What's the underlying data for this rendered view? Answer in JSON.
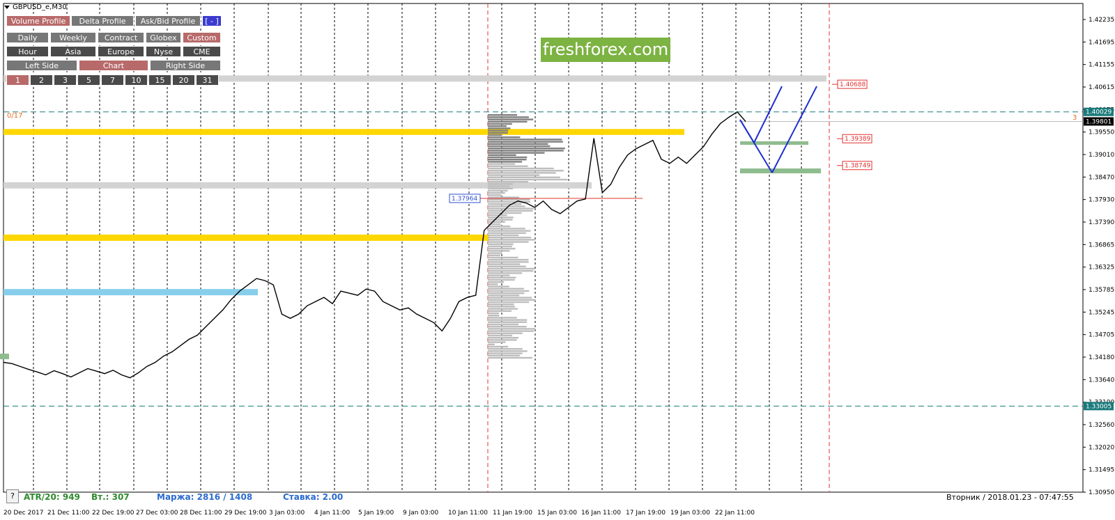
{
  "window": {
    "symbol": "GBPUSD_e,M30"
  },
  "toolbar": {
    "row1": [
      {
        "label": "Volume Profile",
        "active": true
      },
      {
        "label": "Delta Profile",
        "active": false
      },
      {
        "label": "Ask/Bid Profile",
        "active": false
      },
      {
        "label": "[ - ]",
        "active": false,
        "blue": true
      }
    ],
    "row2": [
      {
        "label": "Daily",
        "active": false
      },
      {
        "label": "Weekly",
        "active": false
      },
      {
        "label": "Contract",
        "active": false
      },
      {
        "label": "Globex",
        "active": false
      },
      {
        "label": "Custom",
        "active": true
      }
    ],
    "row3": [
      {
        "label": "Hour",
        "active": false
      },
      {
        "label": "Asia",
        "active": false
      },
      {
        "label": "Europe",
        "active": false
      },
      {
        "label": "Nyse",
        "active": false
      },
      {
        "label": "CME",
        "active": false
      }
    ],
    "row4": [
      {
        "label": "Left Side",
        "active": false
      },
      {
        "label": "Chart",
        "active": true
      },
      {
        "label": "Right Side",
        "active": false
      }
    ],
    "row5": [
      {
        "label": "1",
        "active": true
      },
      {
        "label": "2",
        "active": false
      },
      {
        "label": "3",
        "active": false
      },
      {
        "label": "5",
        "active": false
      },
      {
        "label": "7",
        "active": false
      },
      {
        "label": "10",
        "active": false
      },
      {
        "label": "15",
        "active": false
      },
      {
        "label": "20",
        "active": false
      },
      {
        "label": "31",
        "active": false
      }
    ]
  },
  "logo": {
    "text": "freshforex.com",
    "color": "#7cb342"
  },
  "counter_left": "0/17",
  "counter_right": "3",
  "price_axis": {
    "min": 1.3095,
    "max": 1.42235,
    "ticks": [
      "1.42235",
      "1.41695",
      "1.41155",
      "1.40615",
      "1.40075",
      "1.39550",
      "1.39010",
      "1.38470",
      "1.37930",
      "1.37390",
      "1.36865",
      "1.36325",
      "1.35785",
      "1.35245",
      "1.34705",
      "1.34180",
      "1.33640",
      "1.33100",
      "1.32560",
      "1.32020",
      "1.31495",
      "1.30950"
    ]
  },
  "price_labels": {
    "current": "1.39801",
    "level_top": "1.40029",
    "level_bottom": "1.33005",
    "target_1": "1.40688",
    "target_2": "1.39389",
    "target_3": "1.38749",
    "poc": "1.37964"
  },
  "time_axis": [
    "20 Dec 2017",
    "21 Dec 11:00",
    "22 Dec 19:00",
    "27 Dec 03:00",
    "28 Dec 11:00",
    "29 Dec 19:00",
    "3 Jan 03:00",
    "4 Jan 11:00",
    "5 Jan 19:00",
    "9 Jan 03:00",
    "10 Jan 11:00",
    "11 Jan 19:00",
    "15 Jan 03:00",
    "16 Jan 11:00",
    "17 Jan 19:00",
    "19 Jan 03:00",
    "22 Jan 11:00"
  ],
  "status": {
    "atr": "ATR/20: 949",
    "vt": "Вт.: 307",
    "margin": "Маржа: 2816 / 1408",
    "rate": "Ставка: 2.00",
    "datetime": "Вторник  /  2018.01.23  -  07:47:55",
    "help": "?"
  },
  "colors": {
    "yellow_zone": "#ffd700",
    "gray_zone": "#d3d3d3",
    "blue_zone": "#87ceeb",
    "green_zone": "#8fbc8f",
    "level_line": "#1a7a7a",
    "target_red": "#e03030",
    "projection": "#1f2fd0"
  },
  "chart_data": {
    "type": "line",
    "symbol": "GBPUSD_e,M30",
    "series": [
      {
        "values": [
          1.3405,
          1.3402,
          1.3395,
          1.3388,
          1.3382,
          1.3375,
          1.3385,
          1.3378,
          1.337,
          1.338,
          1.339,
          1.3384,
          1.3378,
          1.3386,
          1.3375,
          1.3368,
          1.338,
          1.3395,
          1.3405,
          1.342,
          1.343,
          1.3445,
          1.346,
          1.347,
          1.349,
          1.351,
          1.353,
          1.3555,
          1.3575,
          1.359,
          1.3605,
          1.36,
          1.359,
          1.352,
          1.351,
          1.352,
          1.354,
          1.355,
          1.356,
          1.3545,
          1.3575,
          1.357,
          1.3565,
          1.358,
          1.3575,
          1.355,
          1.354,
          1.353,
          1.3535,
          1.352,
          1.351,
          1.35,
          1.348,
          1.351,
          1.355,
          1.356,
          1.3565,
          1.372,
          1.374,
          1.376,
          1.378,
          1.379,
          1.3785,
          1.3775,
          1.379,
          1.377,
          1.376,
          1.3775,
          1.379,
          1.3795,
          1.394,
          1.381,
          1.383,
          1.387,
          1.39,
          1.3915,
          1.3925,
          1.3935,
          1.389,
          1.388,
          1.3895,
          1.388,
          1.39,
          1.392,
          1.395,
          1.3975,
          1.399,
          1.4003,
          1.398
        ]
      }
    ],
    "projections": [
      {
        "points": [
          [
            1.4,
            1.394
          ],
          [
            1.394,
            1.407
          ]
        ]
      },
      {
        "points": [
          [
            1.4,
            1.387
          ],
          [
            1.387,
            1.407
          ]
        ]
      }
    ],
    "zones": [
      {
        "name": "yellow-top",
        "low": 1.3948,
        "high": 1.3962
      },
      {
        "name": "gray-top",
        "low": 1.4075,
        "high": 1.409
      },
      {
        "name": "gray-mid",
        "low": 1.382,
        "high": 1.3835
      },
      {
        "name": "yellow-mid",
        "low": 1.3695,
        "high": 1.371
      },
      {
        "name": "blue",
        "low": 1.3565,
        "high": 1.358
      }
    ]
  }
}
